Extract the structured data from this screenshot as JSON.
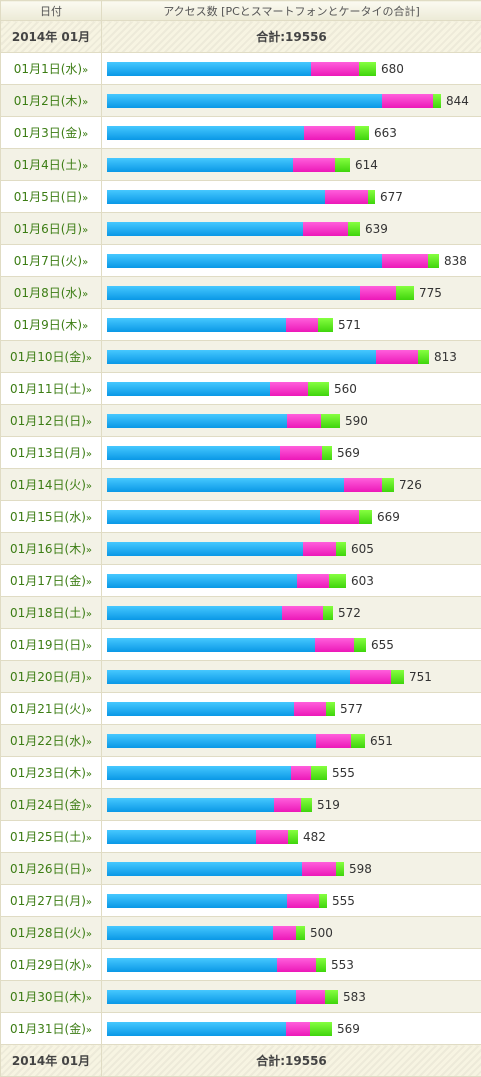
{
  "header": {
    "date_col": "日付",
    "access_col": "アクセス数 [PCとスマートフォンとケータイの合計]"
  },
  "summary": {
    "period": "2014年 01月",
    "total_label": "合計:19556"
  },
  "colors": {
    "pc": "#1aa9f3",
    "smartphone": "#f32ccd",
    "mobile": "#5ae11d"
  },
  "scale_max": 844,
  "days": [
    {
      "date": "01月1日(水)",
      "total": 680,
      "pc": 516,
      "sp": 122,
      "kt": 42
    },
    {
      "date": "01月2日(木)",
      "total": 844,
      "pc": 695,
      "sp": 129,
      "kt": 20
    },
    {
      "date": "01月3日(金)",
      "total": 663,
      "pc": 499,
      "sp": 129,
      "kt": 35
    },
    {
      "date": "01月4日(土)",
      "total": 614,
      "pc": 471,
      "sp": 106,
      "kt": 37
    },
    {
      "date": "01月5日(日)",
      "total": 677,
      "pc": 550,
      "sp": 108,
      "kt": 19
    },
    {
      "date": "01月6日(月)",
      "total": 639,
      "pc": 495,
      "sp": 114,
      "kt": 30
    },
    {
      "date": "01月7日(火)",
      "total": 838,
      "pc": 693,
      "sp": 115,
      "kt": 30
    },
    {
      "date": "01月8日(水)",
      "total": 775,
      "pc": 638,
      "sp": 92,
      "kt": 45
    },
    {
      "date": "01月9日(木)",
      "total": 571,
      "pc": 453,
      "sp": 80,
      "kt": 38
    },
    {
      "date": "01月10日(金)",
      "total": 813,
      "pc": 680,
      "sp": 106,
      "kt": 27
    },
    {
      "date": "01月11日(土)",
      "total": 560,
      "pc": 412,
      "sp": 95,
      "kt": 53
    },
    {
      "date": "01月12日(日)",
      "total": 590,
      "pc": 457,
      "sp": 87,
      "kt": 46
    },
    {
      "date": "01月13日(月)",
      "total": 569,
      "pc": 437,
      "sp": 106,
      "kt": 26
    },
    {
      "date": "01月14日(火)",
      "total": 726,
      "pc": 600,
      "sp": 95,
      "kt": 31
    },
    {
      "date": "01月15日(水)",
      "total": 669,
      "pc": 537,
      "sp": 99,
      "kt": 33
    },
    {
      "date": "01月16日(木)",
      "total": 605,
      "pc": 495,
      "sp": 84,
      "kt": 26
    },
    {
      "date": "01月17日(金)",
      "total": 603,
      "pc": 479,
      "sp": 80,
      "kt": 44
    },
    {
      "date": "01月18日(土)",
      "total": 572,
      "pc": 442,
      "sp": 103,
      "kt": 27
    },
    {
      "date": "01月19日(日)",
      "total": 655,
      "pc": 526,
      "sp": 99,
      "kt": 30
    },
    {
      "date": "01月20日(月)",
      "total": 751,
      "pc": 615,
      "sp": 103,
      "kt": 33
    },
    {
      "date": "01月21日(火)",
      "total": 577,
      "pc": 472,
      "sp": 80,
      "kt": 25
    },
    {
      "date": "01月22日(水)",
      "total": 651,
      "pc": 527,
      "sp": 88,
      "kt": 36
    },
    {
      "date": "01月23日(木)",
      "total": 555,
      "pc": 464,
      "sp": 50,
      "kt": 41
    },
    {
      "date": "01月24日(金)",
      "total": 519,
      "pc": 422,
      "sp": 68,
      "kt": 29
    },
    {
      "date": "01月25日(土)",
      "total": 482,
      "pc": 377,
      "sp": 80,
      "kt": 25
    },
    {
      "date": "01月26日(日)",
      "total": 598,
      "pc": 491,
      "sp": 87,
      "kt": 20
    },
    {
      "date": "01月27日(月)",
      "total": 555,
      "pc": 453,
      "sp": 80,
      "kt": 22
    },
    {
      "date": "01月28日(火)",
      "total": 500,
      "pc": 419,
      "sp": 57,
      "kt": 24
    },
    {
      "date": "01月29日(水)",
      "total": 553,
      "pc": 430,
      "sp": 99,
      "kt": 24
    },
    {
      "date": "01月30日(木)",
      "total": 583,
      "pc": 477,
      "sp": 73,
      "kt": 33
    },
    {
      "date": "01月31日(金)",
      "total": 569,
      "pc": 453,
      "sp": 61,
      "kt": 55
    }
  ]
}
